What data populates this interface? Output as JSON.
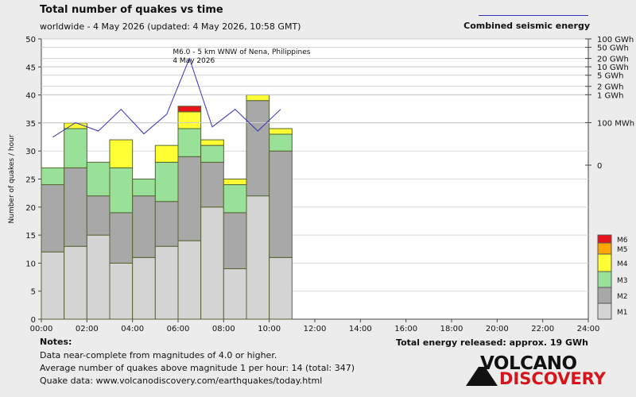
{
  "header": {
    "title": "Total number of quakes vs time",
    "subtitle": "worldwide -  4 May 2026 (updated: 4 May 2026, 10:58 GMT)",
    "energy_legend": "Combined seismic energy"
  },
  "colors": {
    "M1": "#d4d4d4",
    "M2": "#a8a8a8",
    "M3": "#99e099",
    "M4": "#ffff33",
    "M5": "#ffa500",
    "M6": "#e8141a",
    "energy_line": "#3333bb",
    "bar_outline": "#556633",
    "logo_red": "#d8141a"
  },
  "chart_data": {
    "type": "bar",
    "stacked": true,
    "xlabel": "",
    "ylabel": "Number of quakes / hour",
    "ylim": [
      0,
      50
    ],
    "yticks": [
      0,
      5,
      10,
      15,
      20,
      25,
      30,
      35,
      40,
      45,
      50
    ],
    "xlim": [
      0,
      24
    ],
    "xticks": [
      "00:00",
      "02:00",
      "04:00",
      "06:00",
      "08:00",
      "10:00",
      "12:00",
      "14:00",
      "16:00",
      "18:00",
      "20:00",
      "22:00",
      "24:00"
    ],
    "hours": [
      0,
      1,
      2,
      3,
      4,
      5,
      6,
      7,
      8,
      9,
      10
    ],
    "series": [
      {
        "name": "M1",
        "values": [
          12,
          13,
          15,
          10,
          11,
          13,
          14,
          20,
          9,
          22,
          11
        ]
      },
      {
        "name": "M2",
        "values": [
          12,
          14,
          7,
          9,
          11,
          8,
          15,
          8,
          10,
          17,
          19
        ]
      },
      {
        "name": "M3",
        "values": [
          3,
          7,
          6,
          8,
          3,
          7,
          5,
          3,
          5,
          0,
          3
        ]
      },
      {
        "name": "M4",
        "values": [
          0,
          1,
          0,
          5,
          0,
          3,
          3,
          1,
          1,
          1,
          1
        ]
      },
      {
        "name": "M5",
        "values": [
          0,
          0,
          0,
          0,
          0,
          0,
          0,
          0,
          0,
          0,
          0
        ]
      },
      {
        "name": "M6",
        "values": [
          0,
          0,
          0,
          0,
          0,
          0,
          1,
          0,
          0,
          0,
          0
        ]
      }
    ],
    "energy_axis_ticks": [
      "100 GWh",
      "50 GWh",
      "20 GWh",
      "10 GWh",
      "5 GWh",
      "2 GWh",
      "1 GWh",
      "100 MWh",
      "0"
    ],
    "energy_axis_values_gwh": [
      100,
      50,
      20,
      10,
      5,
      2,
      1,
      0.1,
      0
    ],
    "energy_series_gwh": [
      0.03,
      0.1,
      0.05,
      0.3,
      0.04,
      0.2,
      20,
      0.07,
      0.3,
      0.05,
      0.3
    ],
    "annotation": {
      "line1": "M6.0 - 5 km WNW of Nena, Philippines",
      "line2": "4 May 2026",
      "hour": 6.5
    },
    "legend": [
      "M6",
      "M5",
      "M4",
      "M3",
      "M2",
      "M1"
    ]
  },
  "notes": {
    "title": "Notes:",
    "line1": "Data near-complete from magnitudes of 4.0 or higher.",
    "line2": "Average number of quakes above magnitude 1 per hour: 14 (total: 347)",
    "line3": "Quake data: www.volcanodiscovery.com/earthquakes/today.html"
  },
  "total_energy": "Total energy released: approx. 19 GWh",
  "logo": {
    "top": "VOLCANO",
    "bottom": "DISCOVERY"
  }
}
